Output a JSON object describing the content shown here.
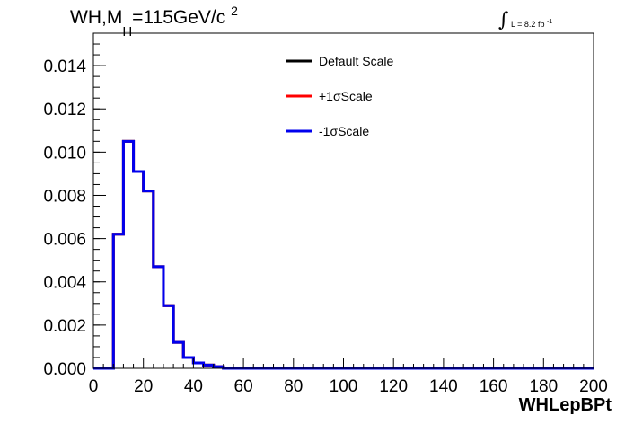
{
  "title": {
    "prefix": "WH,M",
    "subscript": "H",
    "value": "=115GeV/c",
    "superscript": "2"
  },
  "luminosity": {
    "symbol": "∫",
    "text": "L = 8.2 fb",
    "superscript": "-1"
  },
  "chart_data": {
    "type": "step-histogram",
    "xlabel": "WHLepBPt",
    "ylabel": "",
    "xlim": [
      0,
      200
    ],
    "ylim": [
      0,
      0.0155
    ],
    "xticks": [
      0,
      20,
      40,
      60,
      80,
      100,
      120,
      140,
      160,
      180,
      200
    ],
    "xtick_labels": [
      "0",
      "20",
      "40",
      "60",
      "80",
      "100",
      "120",
      "140",
      "160",
      "180",
      "200"
    ],
    "yticks": [
      0.0,
      0.002,
      0.004,
      0.006,
      0.008,
      0.01,
      0.012,
      0.014
    ],
    "ytick_labels": [
      "0.000",
      "0.002",
      "0.004",
      "0.006",
      "0.008",
      "0.010",
      "0.012",
      "0.014"
    ],
    "bin_edges": [
      0,
      4,
      8,
      12,
      16,
      20,
      24,
      28,
      32,
      36,
      40,
      44,
      48,
      52,
      56,
      60,
      64,
      68,
      72,
      76,
      80,
      84,
      88,
      92,
      96,
      100,
      104,
      108,
      112,
      116,
      120,
      124,
      128,
      132,
      136,
      140,
      144,
      148,
      152,
      156,
      160,
      164,
      168,
      172,
      176,
      180,
      184,
      188,
      192,
      196,
      200
    ],
    "series": [
      {
        "name": "Default Scale",
        "color": "#000000",
        "values": [
          0,
          0,
          0.0062,
          0.0105,
          0.0091,
          0.0082,
          0.0047,
          0.0029,
          0.0012,
          0.0005,
          0.00025,
          0.00015,
          8e-05,
          0,
          0,
          0,
          0,
          0,
          0,
          0,
          0,
          0,
          0,
          0,
          0,
          0,
          0,
          0,
          0,
          0,
          0,
          0,
          0,
          0,
          0,
          0,
          0,
          0,
          0,
          0,
          0,
          0,
          0,
          0,
          0,
          0,
          0,
          0,
          0,
          0
        ]
      },
      {
        "name": "+1σScale",
        "color": "#ff0000",
        "values": [
          0,
          0,
          0.0062,
          0.0105,
          0.0091,
          0.0082,
          0.0047,
          0.0029,
          0.0012,
          0.0005,
          0.00025,
          0.00015,
          8e-05,
          0,
          0,
          0,
          0,
          0,
          0,
          0,
          0,
          0,
          0,
          0,
          0,
          0,
          0,
          0,
          0,
          0,
          0,
          0,
          0,
          0,
          0,
          0,
          0,
          0,
          0,
          0,
          0,
          0,
          0,
          0,
          0,
          0,
          0,
          0,
          0,
          0
        ]
      },
      {
        "name": "-1σScale",
        "color": "#0000ee",
        "values": [
          0,
          0,
          0.0062,
          0.0105,
          0.0091,
          0.0082,
          0.0047,
          0.0029,
          0.0012,
          0.0005,
          0.00025,
          0.00015,
          8e-05,
          0,
          0,
          0,
          0,
          0,
          0,
          0,
          0,
          0,
          0,
          0,
          0,
          0,
          0,
          0,
          0,
          0,
          0,
          0,
          0,
          0,
          0,
          0,
          0,
          0,
          0,
          0,
          0,
          0,
          0,
          0,
          0,
          0,
          0,
          0,
          0,
          0
        ]
      }
    ],
    "legend_position": "top-center",
    "grid": false
  }
}
